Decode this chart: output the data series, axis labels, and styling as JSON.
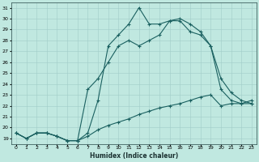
{
  "xlabel": "Humidex (Indice chaleur)",
  "bg_color": "#c0e8e0",
  "grid_color": "#a0ccc8",
  "line_color": "#1a6060",
  "xlim": [
    -0.5,
    23.5
  ],
  "ylim": [
    18.5,
    31.5
  ],
  "yticks": [
    19,
    20,
    21,
    22,
    23,
    24,
    25,
    26,
    27,
    28,
    29,
    30,
    31
  ],
  "xticks": [
    0,
    1,
    2,
    3,
    4,
    5,
    6,
    7,
    8,
    9,
    10,
    11,
    12,
    13,
    14,
    15,
    16,
    17,
    18,
    19,
    20,
    21,
    22,
    23
  ],
  "series": [
    {
      "x": [
        0,
        1,
        2,
        3,
        4,
        5,
        6,
        7,
        8,
        9,
        10,
        11,
        12,
        13,
        14,
        15,
        16,
        17,
        18,
        19,
        20,
        21,
        22,
        23
      ],
      "y": [
        19.5,
        19.0,
        19.5,
        19.5,
        19.2,
        18.8,
        18.8,
        19.2,
        19.8,
        20.2,
        20.5,
        20.8,
        21.2,
        21.5,
        21.8,
        22.0,
        22.2,
        22.5,
        22.8,
        23.0,
        22.0,
        22.2,
        22.2,
        22.2
      ]
    },
    {
      "x": [
        0,
        1,
        2,
        3,
        4,
        5,
        6,
        7,
        8,
        9,
        10,
        11,
        12,
        13,
        14,
        15,
        16,
        17,
        18,
        19,
        20,
        21,
        22,
        23
      ],
      "y": [
        19.5,
        19.0,
        19.5,
        19.5,
        19.2,
        18.8,
        18.8,
        19.5,
        22.5,
        27.5,
        28.5,
        29.5,
        31.0,
        29.5,
        29.5,
        29.8,
        30.0,
        29.5,
        28.8,
        27.5,
        23.5,
        22.5,
        22.2,
        22.5
      ]
    },
    {
      "x": [
        0,
        1,
        2,
        3,
        4,
        5,
        6,
        7,
        8,
        9,
        10,
        11,
        12,
        13,
        14,
        15,
        16,
        17,
        18,
        19,
        20,
        21,
        22,
        23
      ],
      "y": [
        19.5,
        19.0,
        19.5,
        19.5,
        19.2,
        18.8,
        18.8,
        23.5,
        24.5,
        26.0,
        27.5,
        28.0,
        27.5,
        28.0,
        28.5,
        29.8,
        29.8,
        28.8,
        28.5,
        27.5,
        24.5,
        23.2,
        22.5,
        22.2
      ]
    }
  ]
}
